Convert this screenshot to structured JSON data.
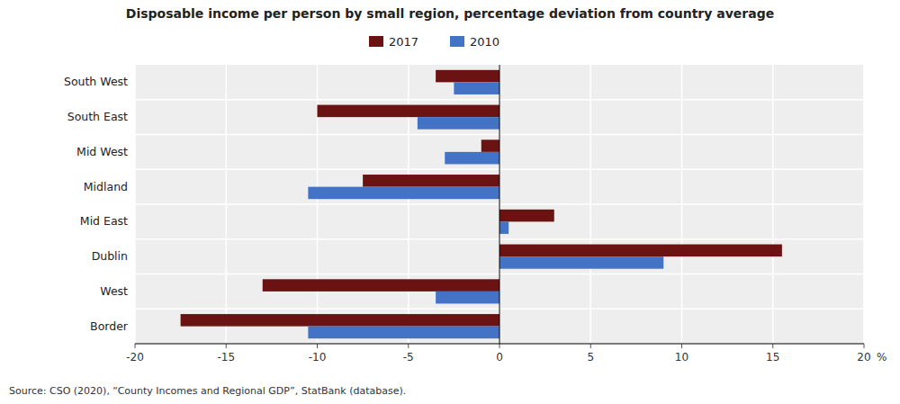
{
  "chart_data": {
    "type": "bar",
    "orientation": "horizontal",
    "title": "Disposable income per person by small region, percentage deviation from country average",
    "categories": [
      "South West",
      "South East",
      "Mid West",
      "Midland",
      "Mid East",
      "Dublin",
      "West",
      "Border"
    ],
    "series": [
      {
        "name": "2017",
        "color": "#6B1212",
        "values": [
          -3.5,
          -10.0,
          -1.0,
          -7.5,
          3.0,
          15.5,
          -13.0,
          -17.5
        ]
      },
      {
        "name": "2010",
        "color": "#4472C4",
        "values": [
          -2.5,
          -4.5,
          -3.0,
          -10.5,
          0.5,
          9.0,
          -3.5,
          -10.5
        ]
      }
    ],
    "xlim": [
      -20,
      20
    ],
    "xticks": [
      -20,
      -15,
      -10,
      -5,
      0,
      5,
      10,
      15,
      20
    ],
    "x_label": "%",
    "grid": true,
    "legend": "top",
    "annotations": [
      "Source: CSO (2020), “County Incomes and Regional GDP”, StatBank (database)."
    ]
  }
}
